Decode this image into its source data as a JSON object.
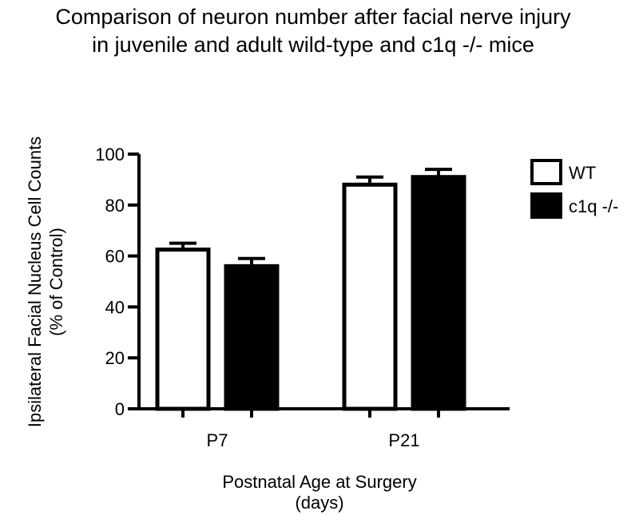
{
  "chart_data": {
    "type": "bar",
    "title_lines": [
      "Comparison of neuron number after facial nerve injury",
      "in juvenile and adult wild-type and c1q -/- mice"
    ],
    "ylabel_lines": [
      "Ipsilateral Facial Nucleus Cell Counts",
      "(% of Control)"
    ],
    "xlabel_lines": [
      "Postnatal Age at Surgery",
      "(days)"
    ],
    "categories": [
      "P7",
      "P21"
    ],
    "series": [
      {
        "name": "WT",
        "values": [
          62.5,
          88
        ],
        "errors": [
          2.5,
          3
        ],
        "fill": "#ffffff"
      },
      {
        "name": "c1q -/-",
        "values": [
          56,
          91
        ],
        "errors": [
          3,
          3
        ],
        "fill": "#000000"
      }
    ],
    "ylim": [
      0,
      100
    ],
    "yticks": [
      0,
      20,
      40,
      60,
      80,
      100
    ],
    "legend_position": "top-right",
    "grid": false
  }
}
